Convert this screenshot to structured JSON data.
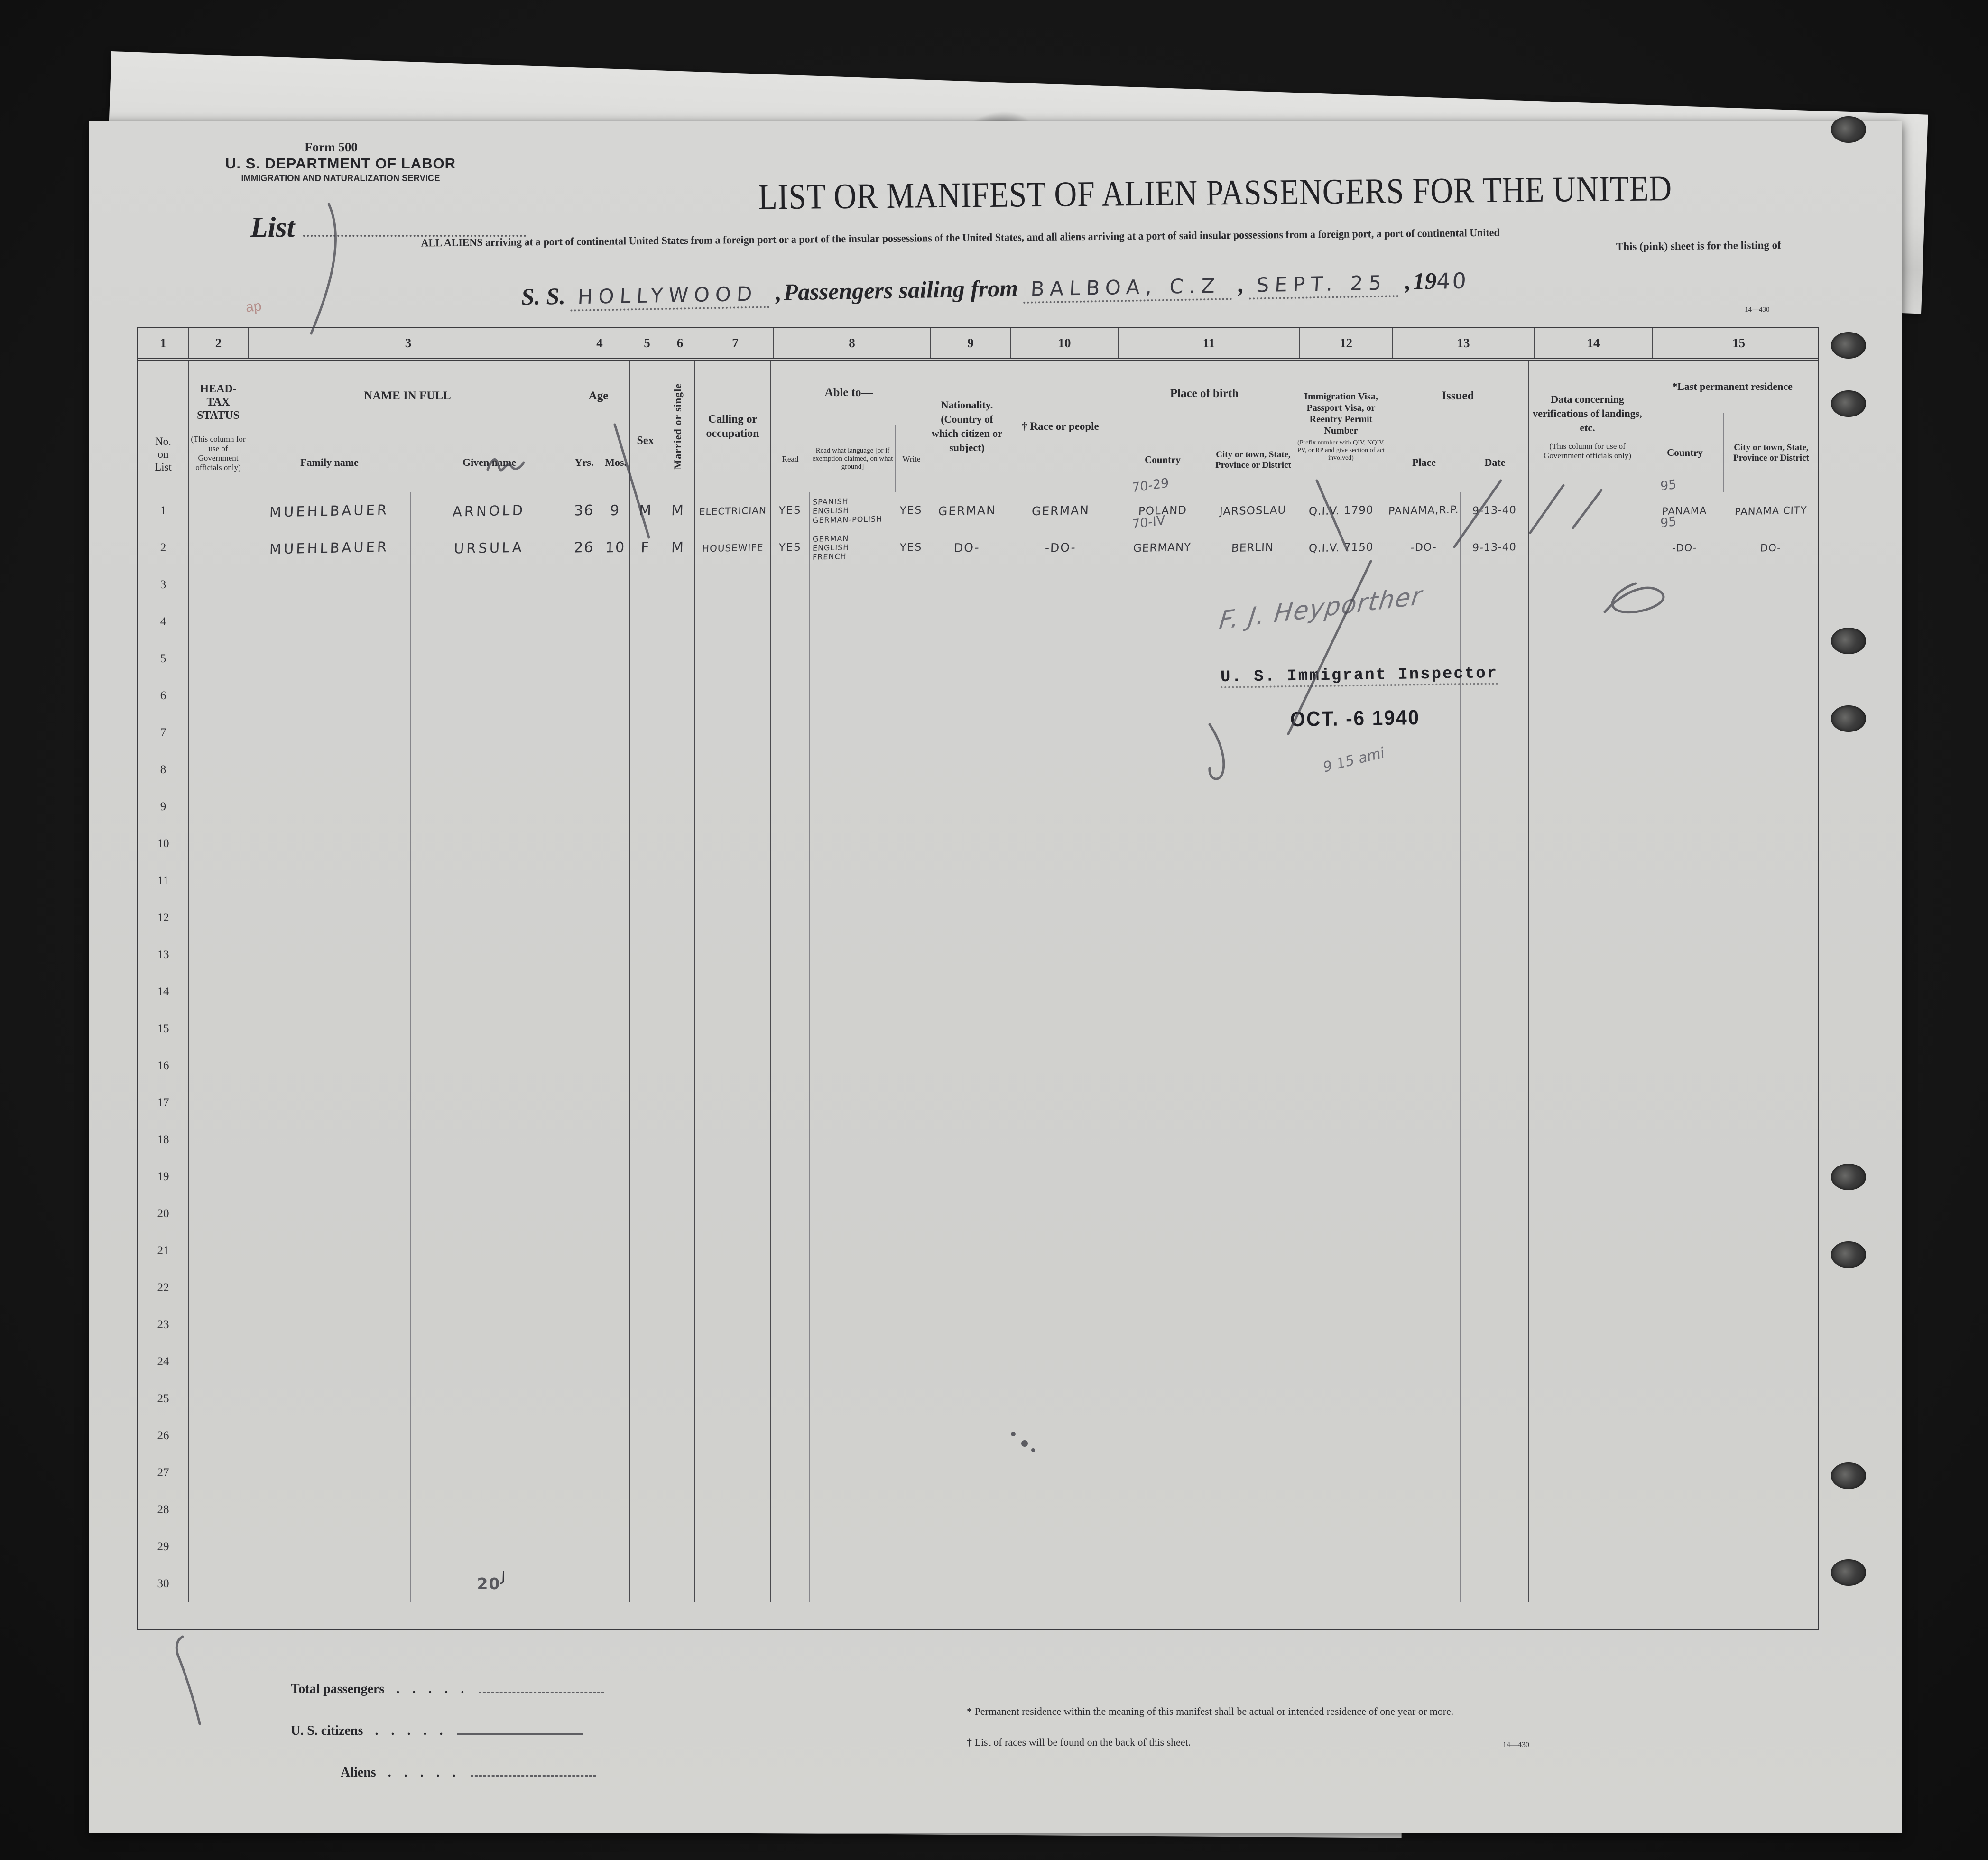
{
  "form": {
    "form_number": "Form 500",
    "department": "U. S. DEPARTMENT OF LABOR",
    "service": "IMMIGRATION AND NATURALIZATION SERVICE",
    "list_label": "List",
    "title": "LIST OR MANIFEST OF ALIEN PASSENGERS FOR THE UNITED",
    "subtitle_line1": "ALL ALIENS arriving at a port of continental United States from a foreign port or a port of the insular possessions of the United States, and all aliens arriving at a port of said insular possessions from a foreign port, a port of continental United",
    "subtitle_line2": "This (pink) sheet is for the listing of",
    "sheet_code": "14—430"
  },
  "voyage": {
    "ss_label": "S. S.",
    "ship_name": "HOLLYWOOD",
    "comma": ",",
    "sailing_label": "Passengers sailing from",
    "port": "BALBOA, C.Z",
    "date_month_day": "SEPT. 25",
    "year_printed": "19",
    "year_written": "40"
  },
  "annotations": {
    "ap_mark": "ap"
  },
  "stamp": {
    "signature": "F. J. Heyporther",
    "line1": "U. S. Immigrant Inspector",
    "date": "OCT. -6 1940",
    "note": "9 15 ami"
  },
  "table": {
    "column_numbers": [
      "1",
      "2",
      "3",
      "4",
      "5",
      "6",
      "7",
      "8",
      "9",
      "10",
      "11",
      "12",
      "13",
      "14",
      "15"
    ],
    "headers": {
      "no_lines": [
        "No.",
        "on",
        "List"
      ],
      "headtax_title": "HEAD-TAX STATUS",
      "headtax_note": "(This column for use of Government officials only)",
      "name_title": "NAME IN FULL",
      "family": "Family name",
      "given": "Given name",
      "age_title": "Age",
      "yrs": "Yrs.",
      "mos": "Mos.",
      "sex": "Sex",
      "married": "Married or single",
      "calling": "Calling or occupation",
      "ableto_title": "Able to—",
      "read": "Read",
      "read_lang": "Read what language [or if exemption claimed, on what ground]",
      "write": "Write",
      "nationality": "Nationality. (Country of which citizen or subject)",
      "race": "† Race or people",
      "birth_title": "Place of birth",
      "birth_country": "Country",
      "birth_city": "City or town, State, Province or District",
      "visa_title": "Immigration Visa, Passport Visa, or Reentry Permit Number",
      "visa_note": "(Prefix number with QIV, NQIV, PV, or RP and give section of act involved)",
      "issued_title": "Issued",
      "issued_place": "Place",
      "issued_date": "Date",
      "verif_title": "Data concerning verifications of landings, etc.",
      "verif_note": "(This column for use of Government officials only)",
      "lastres_title": "*Last permanent residence",
      "res_country": "Country",
      "res_city": "City or town, State, Province or District"
    },
    "rows": [
      {
        "no": "1",
        "family": "MUEHLBAUER",
        "given": "ARNOLD",
        "yrs": "36",
        "mos": "9",
        "sex": "M",
        "married": "M",
        "calling": "ELECTRICIAN",
        "read": "YES",
        "lang": [
          "SPANISH",
          "ENGLISH",
          "GERMAN-POLISH"
        ],
        "write": "YES",
        "nationality": "GERMAN",
        "race": "GERMAN",
        "birth_country": "POLAND",
        "birth_country_note": "70-29",
        "birth_city": "JARSOSLAU",
        "visa": "Q.I.V. 1790",
        "issued_place": "PANAMA,R.P.",
        "issued_date": "9-13-40",
        "res_country": "PANAMA",
        "res_country_note": "95",
        "res_city": "PANAMA CITY"
      },
      {
        "no": "2",
        "family": "MUEHLBAUER",
        "given": "URSULA",
        "yrs": "26",
        "mos": "10",
        "sex": "F",
        "married": "M",
        "calling": "HOUSEWIFE",
        "read": "YES",
        "lang": [
          "GERMAN",
          "ENGLISH",
          "FRENCH"
        ],
        "write": "YES",
        "nationality": "DO-",
        "race": "-DO-",
        "birth_country": "GERMANY",
        "birth_country_note": "70-IV",
        "birth_city": "BERLIN",
        "visa": "Q.I.V. 7150",
        "issued_place": "-DO-",
        "issued_date": "9-13-40",
        "res_country": "-DO-",
        "res_country_note": "95",
        "res_city": "DO-"
      },
      {
        "no": "3"
      },
      {
        "no": "4"
      },
      {
        "no": "5"
      },
      {
        "no": "6"
      },
      {
        "no": "7"
      },
      {
        "no": "8"
      },
      {
        "no": "9"
      },
      {
        "no": "10"
      },
      {
        "no": "11"
      },
      {
        "no": "12"
      },
      {
        "no": "13"
      },
      {
        "no": "14"
      },
      {
        "no": "15"
      },
      {
        "no": "16"
      },
      {
        "no": "17"
      },
      {
        "no": "18"
      },
      {
        "no": "19"
      },
      {
        "no": "20"
      },
      {
        "no": "21"
      },
      {
        "no": "22"
      },
      {
        "no": "23"
      },
      {
        "no": "24"
      },
      {
        "no": "25"
      },
      {
        "no": "26"
      },
      {
        "no": "27"
      },
      {
        "no": "28"
      },
      {
        "no": "29"
      },
      {
        "no": "30",
        "given": "20",
        "given_style": "stampnum",
        "given_mark": "J"
      }
    ]
  },
  "footer": {
    "total_passengers": "Total passengers",
    "us_citizens": "U. S. citizens",
    "aliens": "Aliens",
    "dots": ". . . . .",
    "footnote1": "* Permanent residence within the meaning of this manifest shall be actual or intended residence of one year or more.",
    "footnote2": "† List of races will be found on the back of this sheet.",
    "code": "14—430"
  }
}
